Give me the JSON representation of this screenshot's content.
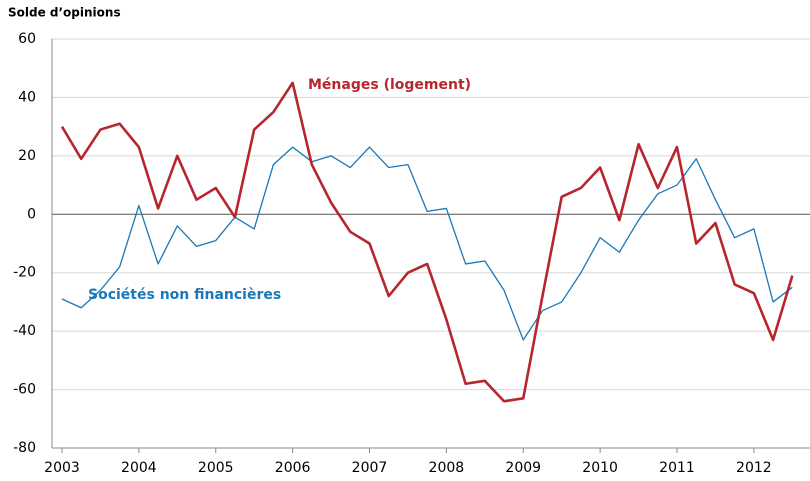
{
  "chart_data": {
    "type": "line",
    "title": "Solde d’opinions",
    "annotations": [
      "Ménages (logement)",
      "Sociétés non financières"
    ],
    "x": [
      2003,
      2003.25,
      2003.5,
      2003.75,
      2004,
      2004.25,
      2004.5,
      2004.75,
      2005,
      2005.25,
      2005.5,
      2005.75,
      2006,
      2006.25,
      2006.5,
      2006.75,
      2007,
      2007.25,
      2007.5,
      2007.75,
      2008,
      2008.25,
      2008.5,
      2008.75,
      2009,
      2009.25,
      2009.5,
      2009.75,
      2010,
      2010.25,
      2010.5,
      2010.75,
      2011,
      2011.25,
      2011.5,
      2011.75,
      2012,
      2012.25,
      2012.5
    ],
    "series": [
      {
        "name": "Ménages (logement)",
        "color": "#b5262e",
        "values": [
          30,
          19,
          29,
          31,
          23,
          2,
          20,
          5,
          9,
          -1,
          29,
          35,
          45,
          17,
          4,
          -6,
          -10,
          -28,
          -20,
          -17,
          -36,
          -58,
          -57,
          -64,
          -63,
          -28,
          6,
          9,
          16,
          -2,
          24,
          9,
          23,
          -10,
          -3,
          -24,
          -27,
          -43,
          -21
        ]
      },
      {
        "name": "Sociétés non financières",
        "color": "#1a78b8",
        "values": [
          -29,
          -32,
          -26,
          -18,
          3,
          -17,
          -4,
          -11,
          -9,
          -1,
          -5,
          17,
          23,
          18,
          20,
          16,
          23,
          16,
          17,
          1,
          2,
          -17,
          -16,
          -26,
          -43,
          -33,
          -30,
          -20,
          -8,
          -13,
          -2,
          7,
          10,
          19,
          5,
          -8,
          -5,
          -30,
          -25
        ]
      }
    ],
    "xlim": [
      2002.87,
      2012.73
    ],
    "xticks": [
      2003,
      2004,
      2005,
      2006,
      2007,
      2008,
      2009,
      2010,
      2011,
      2012
    ],
    "ylim": [
      -80,
      60
    ],
    "yticks": [
      -80,
      -60,
      -40,
      -20,
      0,
      20,
      40,
      60
    ],
    "grid": true
  }
}
